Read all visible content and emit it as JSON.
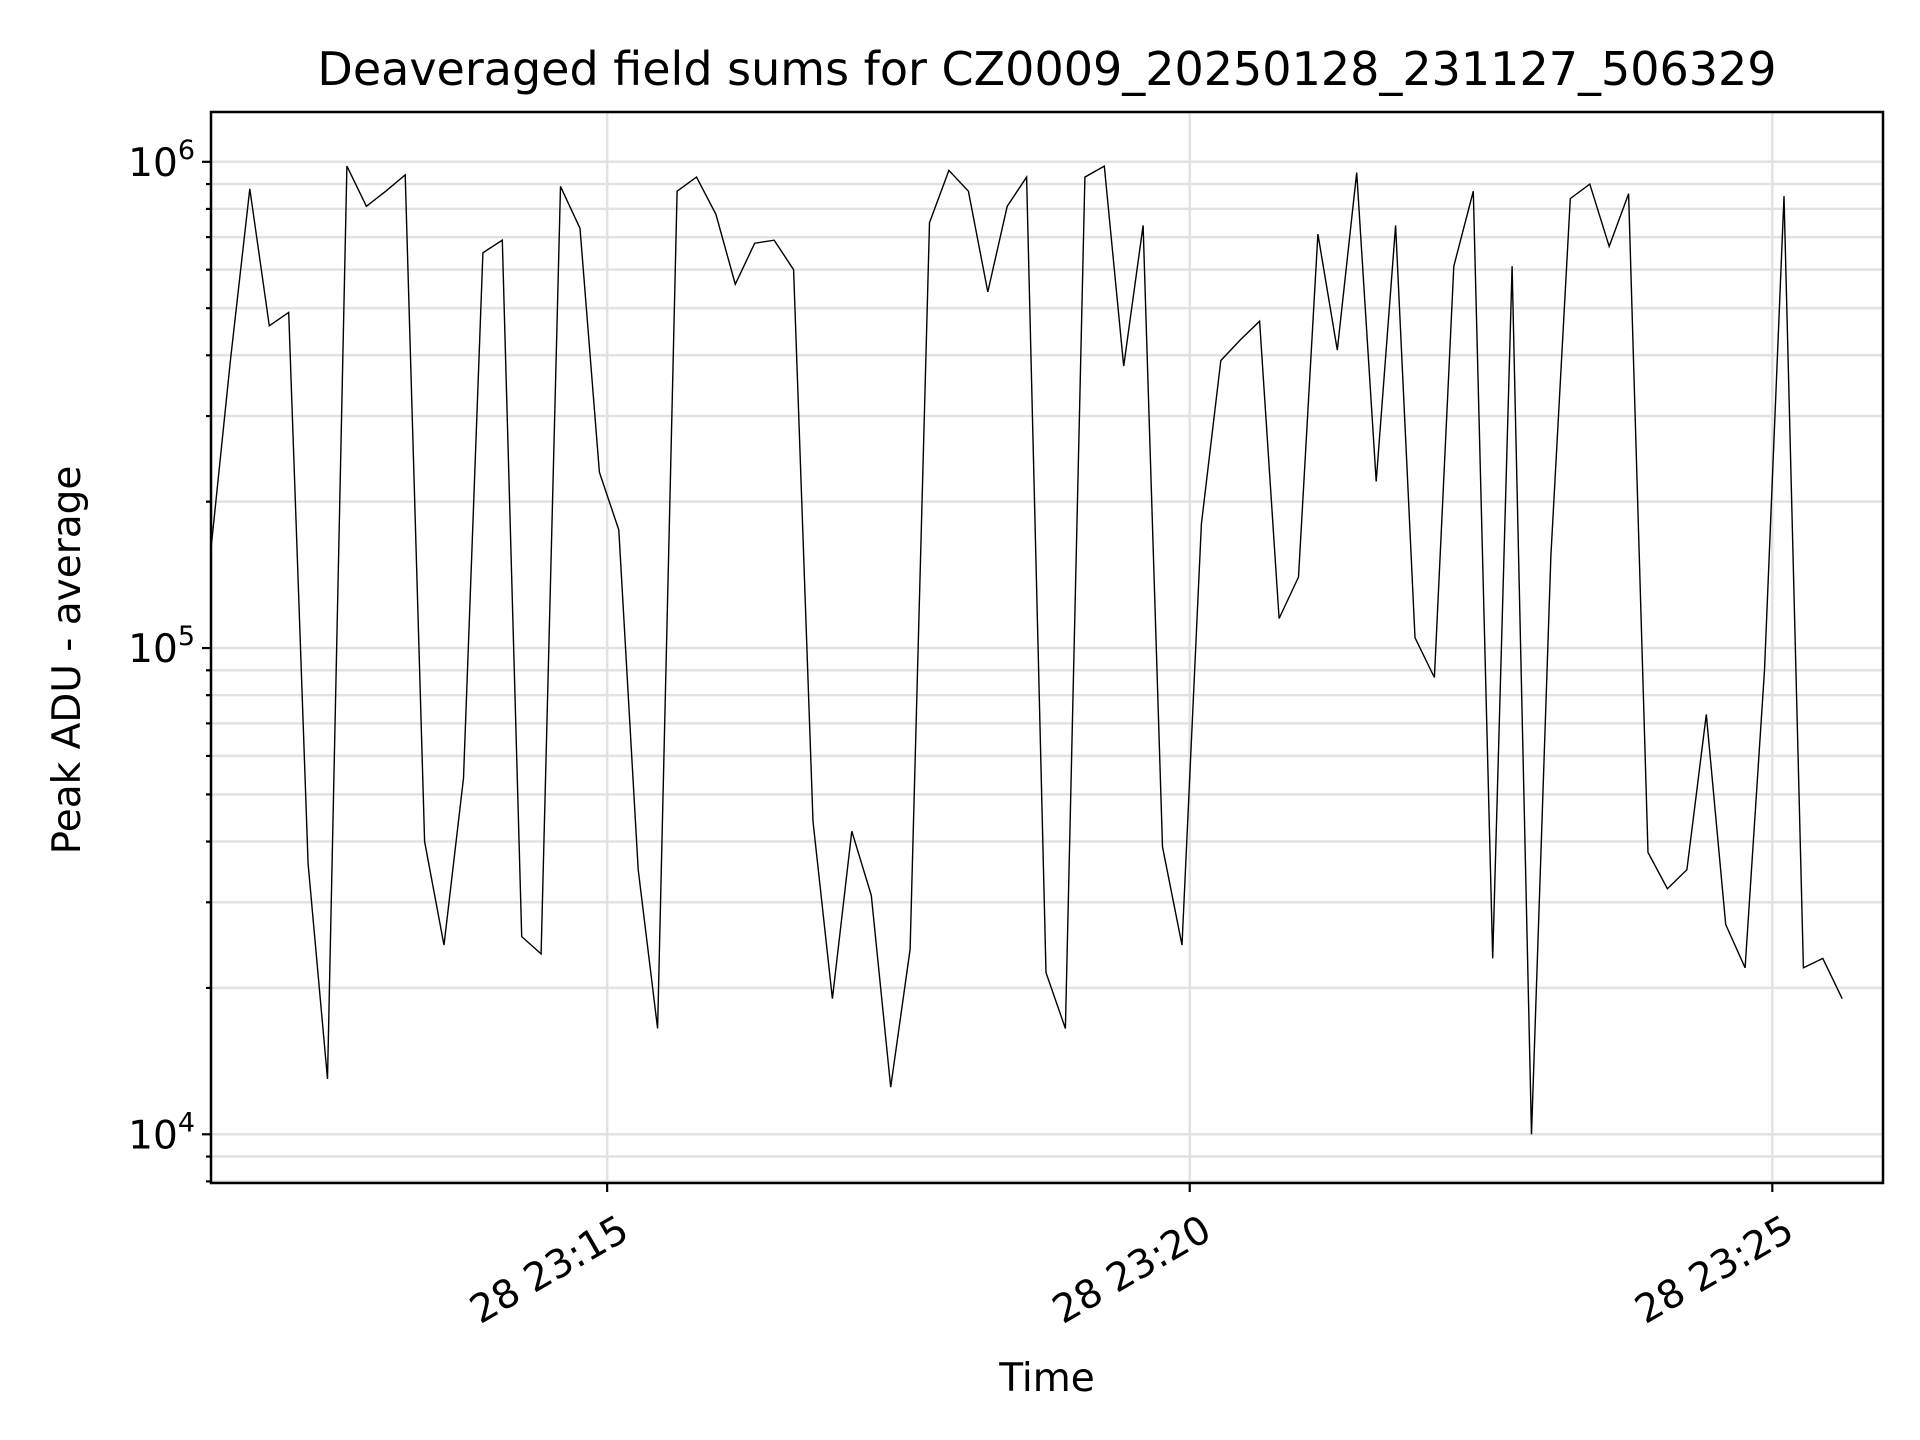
{
  "chart_data": {
    "type": "line",
    "title": "Deaveraged field sums for CZ0009_20250128_231127_506329",
    "xlabel": "Time",
    "ylabel": "Peak ADU - average",
    "yscale": "log",
    "grid": true,
    "y_ticks": [
      {
        "base": "10",
        "exp": "4",
        "value": 10000
      },
      {
        "base": "10",
        "exp": "5",
        "value": 100000
      },
      {
        "base": "10",
        "exp": "6",
        "value": 1000000
      }
    ],
    "x_ticks": [
      "28 23:15",
      "28 23:20",
      "28 23:25"
    ],
    "x_range": [
      "2025-01-28 23:11:36",
      "2025-01-28 23:25:57"
    ],
    "series_color": "#000000",
    "series": [
      {
        "points": [
          [
            "2025-01-28 23:11:36",
            160000
          ],
          [
            "2025-01-28 23:11:46",
            390000
          ],
          [
            "2025-01-28 23:11:56",
            880000
          ],
          [
            "2025-01-28 23:12:06",
            460000
          ],
          [
            "2025-01-28 23:12:16",
            490000
          ],
          [
            "2025-01-28 23:12:26",
            36000
          ],
          [
            "2025-01-28 23:12:36",
            13000
          ],
          [
            "2025-01-28 23:12:46",
            980000
          ],
          [
            "2025-01-28 23:12:56",
            810000
          ],
          [
            "2025-01-28 23:13:06",
            870000
          ],
          [
            "2025-01-28 23:13:16",
            940000
          ],
          [
            "2025-01-28 23:13:26",
            40000
          ],
          [
            "2025-01-28 23:13:36",
            24500
          ],
          [
            "2025-01-28 23:13:46",
            54000
          ],
          [
            "2025-01-28 23:13:56",
            650000
          ],
          [
            "2025-01-28 23:14:06",
            690000
          ],
          [
            "2025-01-28 23:14:16",
            25500
          ],
          [
            "2025-01-28 23:14:26",
            23500
          ],
          [
            "2025-01-28 23:14:36",
            890000
          ],
          [
            "2025-01-28 23:14:46",
            730000
          ],
          [
            "2025-01-28 23:14:56",
            230000
          ],
          [
            "2025-01-28 23:15:06",
            175000
          ],
          [
            "2025-01-28 23:15:16",
            35000
          ],
          [
            "2025-01-28 23:15:26",
            16500
          ],
          [
            "2025-01-28 23:15:36",
            870000
          ],
          [
            "2025-01-28 23:15:46",
            930000
          ],
          [
            "2025-01-28 23:15:56",
            780000
          ],
          [
            "2025-01-28 23:16:06",
            560000
          ],
          [
            "2025-01-28 23:16:16",
            680000
          ],
          [
            "2025-01-28 23:16:26",
            690000
          ],
          [
            "2025-01-28 23:16:36",
            600000
          ],
          [
            "2025-01-28 23:16:46",
            44000
          ],
          [
            "2025-01-28 23:16:56",
            19000
          ],
          [
            "2025-01-28 23:17:06",
            42000
          ],
          [
            "2025-01-28 23:17:16",
            31000
          ],
          [
            "2025-01-28 23:17:26",
            12500
          ],
          [
            "2025-01-28 23:17:36",
            24000
          ],
          [
            "2025-01-28 23:17:46",
            750000
          ],
          [
            "2025-01-28 23:17:56",
            960000
          ],
          [
            "2025-01-28 23:18:06",
            870000
          ],
          [
            "2025-01-28 23:18:16",
            540000
          ],
          [
            "2025-01-28 23:18:26",
            810000
          ],
          [
            "2025-01-28 23:18:36",
            930000
          ],
          [
            "2025-01-28 23:18:46",
            21500
          ],
          [
            "2025-01-28 23:18:56",
            16500
          ],
          [
            "2025-01-28 23:19:06",
            930000
          ],
          [
            "2025-01-28 23:19:16",
            980000
          ],
          [
            "2025-01-28 23:19:26",
            380000
          ],
          [
            "2025-01-28 23:19:36",
            740000
          ],
          [
            "2025-01-28 23:19:46",
            39000
          ],
          [
            "2025-01-28 23:19:56",
            24500
          ],
          [
            "2025-01-28 23:20:06",
            180000
          ],
          [
            "2025-01-28 23:20:16",
            390000
          ],
          [
            "2025-01-28 23:20:26",
            430000
          ],
          [
            "2025-01-28 23:20:36",
            470000
          ],
          [
            "2025-01-28 23:20:46",
            115000
          ],
          [
            "2025-01-28 23:20:56",
            140000
          ],
          [
            "2025-01-28 23:21:06",
            710000
          ],
          [
            "2025-01-28 23:21:16",
            410000
          ],
          [
            "2025-01-28 23:21:26",
            950000
          ],
          [
            "2025-01-28 23:21:36",
            220000
          ],
          [
            "2025-01-28 23:21:46",
            740000
          ],
          [
            "2025-01-28 23:21:56",
            105000
          ],
          [
            "2025-01-28 23:22:06",
            87000
          ],
          [
            "2025-01-28 23:22:16",
            610000
          ],
          [
            "2025-01-28 23:22:26",
            870000
          ],
          [
            "2025-01-28 23:22:36",
            23000
          ],
          [
            "2025-01-28 23:22:46",
            610000
          ],
          [
            "2025-01-28 23:22:56",
            10000
          ],
          [
            "2025-01-28 23:23:06",
            155000
          ],
          [
            "2025-01-28 23:23:16",
            840000
          ],
          [
            "2025-01-28 23:23:26",
            900000
          ],
          [
            "2025-01-28 23:23:36",
            670000
          ],
          [
            "2025-01-28 23:23:46",
            860000
          ],
          [
            "2025-01-28 23:23:56",
            38000
          ],
          [
            "2025-01-28 23:24:06",
            32000
          ],
          [
            "2025-01-28 23:24:16",
            35000
          ],
          [
            "2025-01-28 23:24:26",
            73000
          ],
          [
            "2025-01-28 23:24:36",
            27000
          ],
          [
            "2025-01-28 23:24:46",
            22000
          ],
          [
            "2025-01-28 23:24:56",
            90000
          ],
          [
            "2025-01-28 23:25:06",
            850000
          ],
          [
            "2025-01-28 23:25:16",
            22000
          ],
          [
            "2025-01-28 23:25:26",
            23000
          ],
          [
            "2025-01-28 23:25:36",
            19000
          ]
        ]
      }
    ]
  }
}
